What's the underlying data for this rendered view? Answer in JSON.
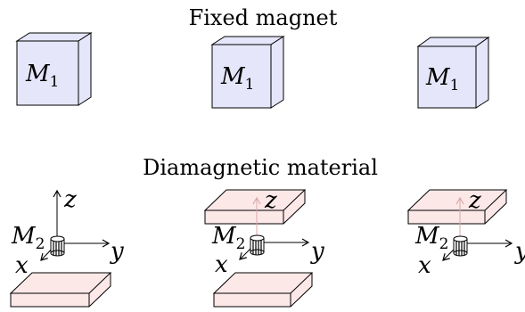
{
  "fixed_label": "Fixed magnet",
  "diamagnetic_label": "Diamagnetic material",
  "magnet_label": {
    "base": "M",
    "sub": "1"
  },
  "small_magnet_label": {
    "base": "M",
    "sub": "2"
  },
  "axes": {
    "x": "x",
    "y": "y",
    "z": "z"
  },
  "colors": {
    "magnet_fill": "#e6e6fb",
    "plate_fill": "#fde8e8",
    "outline": "#000000",
    "faint_axis": "#d9a9a9"
  }
}
